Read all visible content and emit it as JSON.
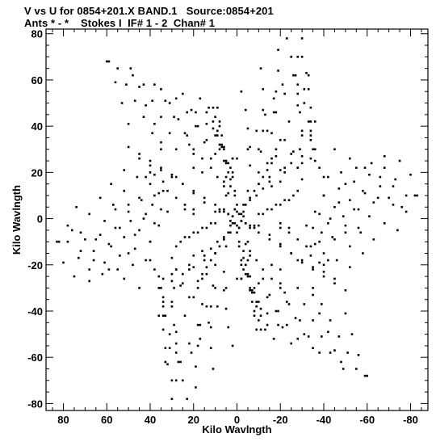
{
  "header": {
    "line1": "V vs U for 0854+201.X BAND.1   Source:0854+201",
    "line2": "Ants * - *    Stokes I  IF# 1 - 2  Chan# 1"
  },
  "chart_data": {
    "type": "scatter",
    "title": "V vs U for 0854+201.X BAND.1   Source:0854+201",
    "subtitle": "Ants * - *    Stokes I  IF# 1 - 2  Chan# 1",
    "xlabel": "Kilo Wavlngth",
    "ylabel": "Kilo Wavlngth",
    "xlim": [
      88,
      -88
    ],
    "ylim": [
      -83,
      82
    ],
    "x_ticks": [
      80,
      60,
      40,
      20,
      0,
      -20,
      -40,
      -60,
      -80
    ],
    "y_ticks": [
      80,
      60,
      40,
      20,
      0,
      -20,
      -40,
      -60,
      -80
    ],
    "x_tick_labels": [
      "80",
      "60",
      "40",
      "20",
      "0",
      "-20",
      "-40",
      "-60",
      "-80"
    ],
    "y_tick_labels": [
      "80",
      "60",
      "40",
      "20",
      "0",
      "-20",
      "-40",
      "-60",
      "-80"
    ],
    "grid": false,
    "point_color": "#000000",
    "series": [
      {
        "values": [
          [
            60,
            68
          ],
          [
            56,
            59
          ],
          [
            53,
            50
          ],
          [
            50,
            41
          ],
          [
            49,
            65
          ],
          [
            45,
            57
          ],
          [
            42,
            49
          ],
          [
            38,
            41
          ],
          [
            35,
            33
          ],
          [
            38,
            58
          ],
          [
            33,
            51
          ],
          [
            29,
            44
          ],
          [
            24,
            37
          ],
          [
            20,
            30
          ],
          [
            28,
            52
          ],
          [
            23,
            46
          ],
          [
            19,
            40
          ],
          [
            14,
            34
          ],
          [
            10,
            28
          ],
          [
            19,
            46
          ],
          [
            14,
            41
          ],
          [
            10,
            36
          ],
          [
            6,
            31
          ],
          [
            2,
            26
          ],
          [
            13,
            48
          ],
          [
            11,
            42
          ],
          [
            9,
            36
          ],
          [
            6,
            30
          ],
          [
            4,
            24
          ],
          [
            2,
            18
          ],
          [
            1,
            12
          ],
          [
            0,
            6
          ],
          [
            8,
            40
          ],
          [
            7,
            32
          ],
          [
            6,
            25
          ],
          [
            5,
            18
          ],
          [
            4,
            11
          ],
          [
            -2,
            55
          ],
          [
            -4,
            47
          ],
          [
            -5,
            39
          ],
          [
            -6,
            31
          ],
          [
            -6,
            23
          ],
          [
            -11,
            65
          ],
          [
            -12,
            56
          ],
          [
            -12,
            47
          ],
          [
            -12,
            38
          ],
          [
            -11,
            29
          ],
          [
            -19,
            73
          ],
          [
            -19,
            64
          ],
          [
            -18,
            55
          ],
          [
            -17,
            46
          ],
          [
            -16,
            37
          ],
          [
            -23,
            78
          ],
          [
            -25,
            70
          ],
          [
            -27,
            62
          ],
          [
            -28,
            54
          ],
          [
            -29,
            46
          ],
          [
            -30,
            38
          ],
          [
            -29,
            30
          ],
          [
            -28,
            22
          ],
          [
            -28,
            58
          ],
          [
            -31,
            50
          ],
          [
            -33,
            42
          ],
          [
            -34,
            34
          ],
          [
            -34,
            26
          ],
          [
            -30,
            70
          ],
          [
            -32,
            63
          ],
          [
            -33,
            56
          ],
          [
            -34,
            48
          ],
          [
            -34,
            38
          ],
          [
            -35,
            30
          ],
          [
            -36,
            25
          ],
          [
            -38,
            22
          ],
          [
            -45,
            30
          ],
          [
            -52,
            26
          ],
          [
            -59,
            22
          ],
          [
            -66,
            18
          ],
          [
            -72,
            14
          ],
          [
            -78,
            10
          ],
          [
            -83,
            10
          ],
          [
            -42,
            18
          ],
          [
            -50,
            15
          ],
          [
            -58,
            12
          ],
          [
            -65,
            9
          ],
          [
            -72,
            6
          ],
          [
            -78,
            3
          ],
          [
            -40,
            10
          ],
          [
            -47,
            7
          ],
          [
            -54,
            4
          ],
          [
            -61,
            1
          ],
          [
            -68,
            -2
          ],
          [
            -74,
            -5
          ],
          [
            -36,
            3
          ],
          [
            -43,
            0
          ],
          [
            -50,
            -3
          ],
          [
            -57,
            -6
          ],
          [
            -63,
            -9
          ],
          [
            -32,
            -3
          ],
          [
            -39,
            -6
          ],
          [
            -45,
            -9
          ],
          [
            -52,
            -12
          ],
          [
            -58,
            -15
          ],
          [
            -28,
            -9
          ],
          [
            -34,
            -12
          ],
          [
            -40,
            -15
          ],
          [
            -46,
            -18
          ],
          [
            -52,
            -21
          ],
          [
            -10,
            -3
          ],
          [
            -15,
            -7
          ],
          [
            -20,
            -11
          ],
          [
            -25,
            -15
          ],
          [
            -30,
            -19
          ],
          [
            -35,
            -22
          ],
          [
            -40,
            -25
          ],
          [
            -45,
            -28
          ],
          [
            -50,
            -31
          ],
          [
            -35,
            -30
          ],
          [
            -39,
            -37
          ],
          [
            -43,
            -44
          ],
          [
            -47,
            -51
          ],
          [
            -51,
            -58
          ],
          [
            -55,
            -65
          ],
          [
            -59,
            -68
          ],
          [
            -28,
            -30
          ],
          [
            -31,
            -37
          ],
          [
            -35,
            -44
          ],
          [
            -39,
            -51
          ],
          [
            -43,
            -58
          ],
          [
            -48,
            -62
          ],
          [
            -20,
            -28
          ],
          [
            -23,
            -36
          ],
          [
            -27,
            -43
          ],
          [
            -31,
            -50
          ],
          [
            -35,
            -56
          ],
          [
            -12,
            -26
          ],
          [
            -15,
            -33
          ],
          [
            -18,
            -40
          ],
          [
            -21,
            -47
          ],
          [
            -25,
            -54
          ],
          [
            -5,
            -25
          ],
          [
            -8,
            -32
          ],
          [
            -11,
            -39
          ],
          [
            -14,
            -46
          ],
          [
            -17,
            -52
          ],
          [
            -1,
            -10
          ],
          [
            -3,
            -17
          ],
          [
            -5,
            -24
          ],
          [
            -7,
            -31
          ],
          [
            -9,
            -38
          ],
          [
            -10,
            -44
          ],
          [
            -11,
            -48
          ],
          [
            -8,
            -30
          ],
          [
            -7,
            -36
          ],
          [
            -8,
            -42
          ],
          [
            -9,
            -48
          ],
          [
            5,
            -30
          ],
          [
            9,
            -38
          ],
          [
            13,
            -45
          ],
          [
            17,
            -52
          ],
          [
            21,
            -58
          ],
          [
            10,
            -30
          ],
          [
            14,
            -38
          ],
          [
            18,
            -46
          ],
          [
            22,
            -54
          ],
          [
            26,
            -62
          ],
          [
            28,
            -70
          ],
          [
            30,
            -78
          ],
          [
            16,
            -26
          ],
          [
            20,
            -34
          ],
          [
            24,
            -42
          ],
          [
            28,
            -49
          ],
          [
            31,
            -56
          ],
          [
            33,
            -62
          ],
          [
            22,
            -22
          ],
          [
            26,
            -29
          ],
          [
            30,
            -36
          ],
          [
            34,
            -42
          ],
          [
            28,
            -12
          ],
          [
            30,
            -17
          ],
          [
            28,
            -22
          ],
          [
            25,
            -28
          ],
          [
            22,
            -20
          ],
          [
            30,
            -24
          ],
          [
            36,
            -30
          ],
          [
            34,
            -36
          ],
          [
            36,
            -42
          ],
          [
            40,
            -18
          ],
          [
            48,
            -20
          ],
          [
            55,
            -22
          ],
          [
            62,
            -24
          ],
          [
            68,
            -27
          ],
          [
            40,
            -10
          ],
          [
            47,
            -13
          ],
          [
            54,
            -16
          ],
          [
            61,
            -19
          ],
          [
            68,
            -22
          ],
          [
            75,
            -25
          ],
          [
            82,
            -10
          ],
          [
            38,
            -2
          ],
          [
            45,
            -5
          ],
          [
            52,
            -8
          ],
          [
            59,
            -11
          ],
          [
            66,
            -14
          ],
          [
            73,
            -17
          ],
          [
            80,
            -19
          ],
          [
            35,
            4
          ],
          [
            42,
            2
          ],
          [
            49,
            -1
          ],
          [
            56,
            -4
          ],
          [
            63,
            -7
          ],
          [
            70,
            -9
          ],
          [
            76,
            -5
          ],
          [
            32,
            12
          ],
          [
            38,
            10
          ],
          [
            44,
            8
          ],
          [
            50,
            6
          ],
          [
            56,
            4
          ],
          [
            28,
            18
          ],
          [
            34,
            16
          ],
          [
            38,
            19
          ],
          [
            40,
            20
          ],
          [
            42,
            18
          ],
          [
            36,
            11
          ],
          [
            10,
            6
          ],
          [
            15,
            9
          ],
          [
            20,
            12
          ],
          [
            25,
            15
          ],
          [
            30,
            18
          ],
          [
            35,
            21
          ],
          [
            40,
            23
          ],
          [
            45,
            26
          ],
          [
            8,
            3
          ],
          [
            6,
            4
          ],
          [
            4,
            2
          ],
          [
            2,
            1
          ],
          [
            -2,
            -1
          ],
          [
            -4,
            -2
          ],
          [
            -6,
            -3
          ],
          [
            -8,
            -4
          ],
          [
            5,
            10
          ],
          [
            3,
            14
          ],
          [
            2,
            20
          ],
          [
            0,
            26
          ],
          [
            -5,
            12
          ],
          [
            -10,
            15
          ],
          [
            -15,
            18
          ],
          [
            -20,
            21
          ],
          [
            -25,
            24
          ],
          [
            -30,
            27
          ],
          [
            -3,
            6
          ],
          [
            -6,
            8
          ],
          [
            -9,
            10
          ],
          [
            -12,
            13
          ],
          [
            -15,
            16
          ],
          [
            4,
            -6
          ],
          [
            6,
            -9
          ],
          [
            8,
            -12
          ],
          [
            10,
            -15
          ],
          [
            12,
            -18
          ],
          [
            14,
            -21
          ],
          [
            16,
            -24
          ],
          [
            18,
            -27
          ],
          [
            2,
            -2
          ],
          [
            -1,
            2
          ],
          [
            0,
            -3
          ],
          [
            3,
            -1
          ],
          [
            -3,
            3
          ],
          [
            1,
            4
          ],
          [
            -1,
            -4
          ],
          [
            10,
            -2
          ],
          [
            14,
            -4
          ],
          [
            18,
            -6
          ],
          [
            22,
            -8
          ],
          [
            26,
            -10
          ],
          [
            -12,
            2
          ],
          [
            -16,
            4
          ],
          [
            -20,
            6
          ],
          [
            -24,
            8
          ],
          [
            12,
            22
          ],
          [
            16,
            26
          ],
          [
            22,
            32
          ],
          [
            6,
            16
          ],
          [
            3,
            22
          ],
          [
            -20,
            -4
          ],
          [
            -24,
            -6
          ],
          [
            -16,
            -20
          ],
          [
            -20,
            -22
          ],
          [
            20,
            2
          ],
          [
            24,
            4
          ],
          [
            16,
            -14
          ],
          [
            20,
            -16
          ],
          [
            -18,
            30
          ],
          [
            -22,
            34
          ],
          [
            -10,
            20
          ],
          [
            -14,
            24
          ],
          [
            -6,
            -14
          ],
          [
            -9,
            -18
          ],
          [
            -4,
            -20
          ],
          [
            -2,
            -26
          ]
        ]
      }
    ]
  }
}
